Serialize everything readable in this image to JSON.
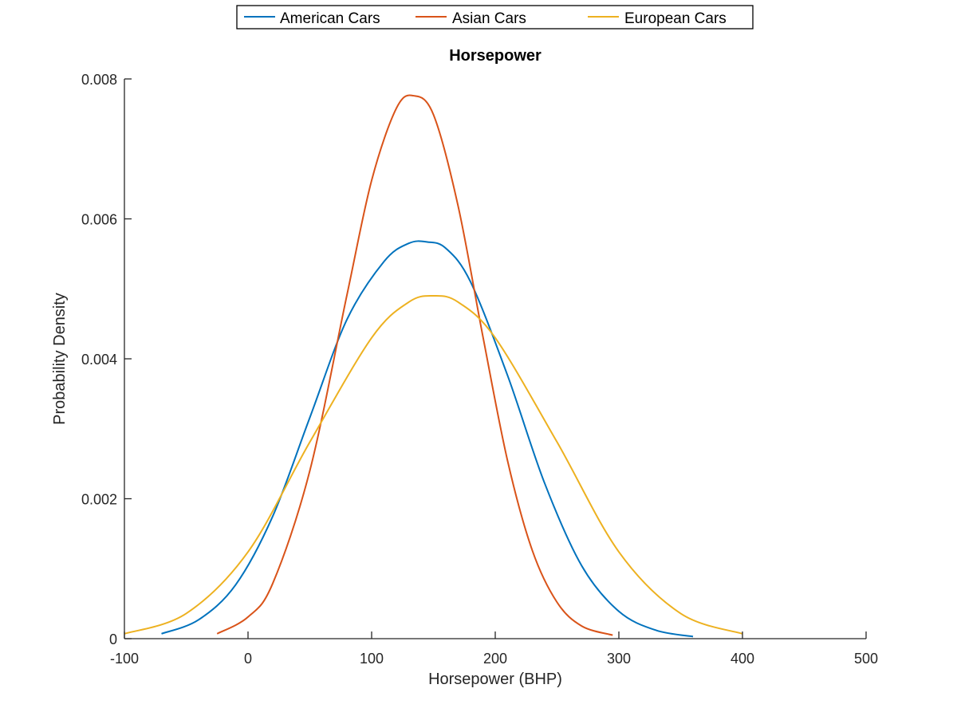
{
  "chart_data": {
    "type": "line",
    "title": "Horsepower",
    "xlabel": "Horsepower (BHP)",
    "ylabel": "Probability Density",
    "xlim": [
      -100,
      500
    ],
    "ylim": [
      0,
      0.008
    ],
    "xticks": [
      -100,
      0,
      100,
      200,
      300,
      400,
      500
    ],
    "xtick_labels": [
      "-100",
      "0",
      "100",
      "200",
      "300",
      "400",
      "500"
    ],
    "yticks": [
      0,
      0.002,
      0.004,
      0.006,
      0.008
    ],
    "ytick_labels": [
      "0",
      "0.002",
      "0.004",
      "0.006",
      "0.008"
    ],
    "grid": false,
    "legend_position": "top-center-outside",
    "series": [
      {
        "name": "American Cars",
        "color": "#0072BD",
        "x": [
          -70,
          -40,
          -10,
          20,
          50,
          80,
          110,
          130,
          145,
          160,
          180,
          210,
          240,
          270,
          300,
          330,
          360
        ],
        "y": [
          7e-05,
          0.00027,
          0.00077,
          0.00175,
          0.00316,
          0.00456,
          0.00539,
          0.00565,
          0.00567,
          0.00558,
          0.0051,
          0.00376,
          0.00222,
          0.00104,
          0.00039,
          0.00012,
          3e-05
        ]
      },
      {
        "name": "Asian Cars",
        "color": "#D95319",
        "x": [
          -25,
          0,
          20,
          50,
          80,
          100,
          120,
          134,
          150,
          170,
          190,
          210,
          230,
          250,
          270,
          295
        ],
        "y": [
          7e-05,
          0.00031,
          0.00079,
          0.0024,
          0.00491,
          0.00655,
          0.00758,
          0.00776,
          0.00749,
          0.00618,
          0.00432,
          0.00254,
          0.00126,
          0.00052,
          0.00018,
          5e-05
        ]
      },
      {
        "name": "European Cars",
        "color": "#EDB120",
        "x": [
          -100,
          -50,
          0,
          50,
          100,
          130,
          150,
          170,
          200,
          250,
          300,
          350,
          400
        ],
        "y": [
          7e-05,
          0.00036,
          0.00124,
          0.00281,
          0.0043,
          0.00481,
          0.0049,
          0.00481,
          0.0043,
          0.00281,
          0.00124,
          0.00036,
          7e-05
        ]
      }
    ]
  }
}
